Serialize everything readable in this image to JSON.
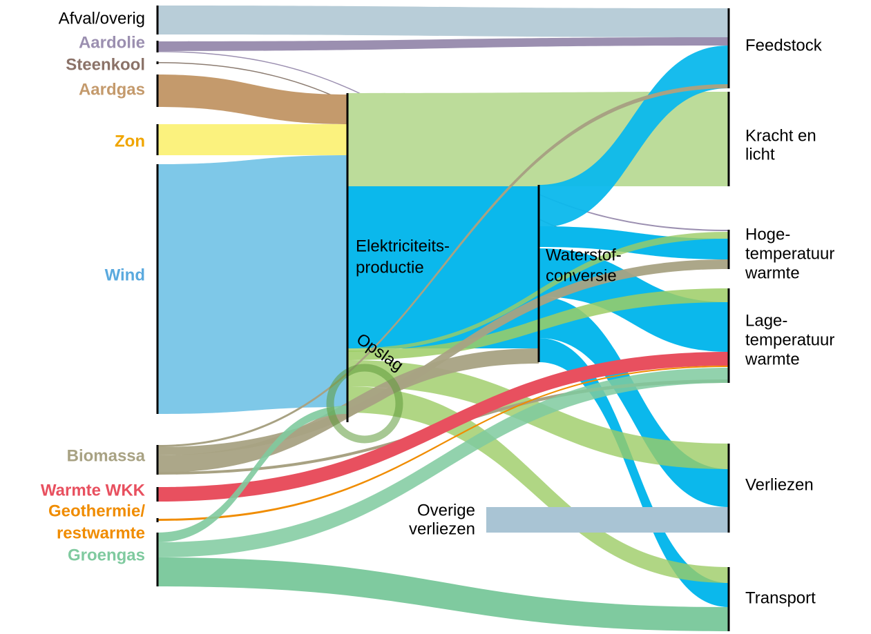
{
  "sources": [
    {
      "label": "Afval/overig"
    },
    {
      "label": "Aardolie"
    },
    {
      "label": "Steenkool"
    },
    {
      "label": "Aardgas"
    },
    {
      "label": "Zon"
    },
    {
      "label": "Wind"
    },
    {
      "label": "Biomassa"
    },
    {
      "label": "Warmte WKK"
    },
    {
      "lines": [
        "Geothermie/",
        "restwarmte"
      ]
    },
    {
      "label": "Groengas"
    }
  ],
  "conversions": [
    {
      "lines": [
        "Elektriciteits-",
        "productie"
      ]
    },
    {
      "lines": [
        "Waterstof-",
        "conversie"
      ]
    },
    {
      "label": "Opslag"
    },
    {
      "lines": [
        "Overige",
        "verliezen"
      ]
    }
  ],
  "uses": [
    {
      "label": "Feedstock"
    },
    {
      "lines": [
        "Kracht en",
        "licht"
      ]
    },
    {
      "lines": [
        "Hoge-",
        "temperatuur",
        "warmte"
      ]
    },
    {
      "lines": [
        "Lage-",
        "temperatuur",
        "warmte"
      ]
    },
    {
      "label": "Verliezen"
    },
    {
      "label": "Transport"
    }
  ]
}
